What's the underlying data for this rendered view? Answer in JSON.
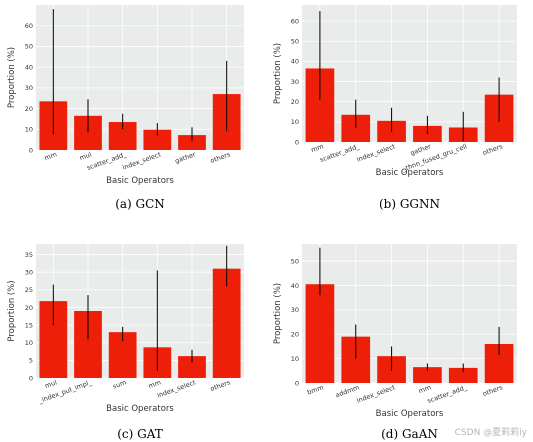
{
  "colors": {
    "bar": "#ee1f08",
    "panel": "#e9ecea",
    "grid": "#ffffff",
    "error": "#000000"
  },
  "watermark": "CSDN @夏莉莉iy",
  "chart_data": [
    {
      "type": "bar",
      "caption": "(a) GCN",
      "xlabel": "Basic Operators",
      "ylabel": "Proportion (%)",
      "categories": [
        "mm",
        "mul",
        "scatter_add_",
        "index_select",
        "gather",
        "others"
      ],
      "values": [
        23.5,
        16.5,
        13.5,
        9.8,
        7.2,
        27
      ],
      "errors": [
        [
          7.5,
          68
        ],
        [
          8.5,
          24.5
        ],
        [
          10,
          17.5
        ],
        [
          7,
          13
        ],
        [
          4.5,
          11
        ],
        [
          9,
          43
        ]
      ],
      "yticks": [
        0,
        10,
        20,
        30,
        40,
        50,
        60
      ],
      "ylim": [
        0,
        70
      ]
    },
    {
      "type": "bar",
      "caption": "(b) GGNN",
      "xlabel": "Basic Operators",
      "ylabel": "Proportion (%)",
      "categories": [
        "mm",
        "scatter_add_",
        "index_select",
        "gather",
        "_thnn_fused_gru_cell",
        "others"
      ],
      "values": [
        36.5,
        13.5,
        10.5,
        8,
        7.2,
        23.5
      ],
      "errors": [
        [
          21,
          65
        ],
        [
          7,
          21
        ],
        [
          5,
          17
        ],
        [
          4,
          13
        ],
        [
          0.5,
          15
        ],
        [
          10,
          32
        ]
      ],
      "yticks": [
        0,
        10,
        20,
        30,
        40,
        50,
        60
      ],
      "ylim": [
        0,
        68
      ]
    },
    {
      "type": "bar",
      "caption": "(c) GAT",
      "xlabel": "Basic Operators",
      "ylabel": "Proportion (%)",
      "categories": [
        "mul",
        "_index_put_impl_",
        "sum",
        "mm",
        "index_select",
        "others"
      ],
      "values": [
        21.8,
        19,
        13,
        8.7,
        6.2,
        31
      ],
      "errors": [
        [
          15,
          26.5
        ],
        [
          11,
          23.5
        ],
        [
          10.5,
          14.5
        ],
        [
          2,
          30.5
        ],
        [
          4.5,
          8
        ],
        [
          26,
          37.5
        ]
      ],
      "yticks": [
        0,
        5,
        10,
        15,
        20,
        25,
        30,
        35
      ],
      "ylim": [
        0,
        38
      ]
    },
    {
      "type": "bar",
      "caption": "(d) GaAN",
      "xlabel": "Basic Operators",
      "ylabel": "Proportion (%)",
      "categories": [
        "bmm",
        "addmm",
        "index_select",
        "mm",
        "scatter_add_",
        "others"
      ],
      "values": [
        40.5,
        19,
        11,
        6.5,
        6.2,
        16
      ],
      "errors": [
        [
          36,
          55.5
        ],
        [
          10,
          24
        ],
        [
          5,
          15
        ],
        [
          5,
          8
        ],
        [
          4.5,
          8
        ],
        [
          11.5,
          23
        ]
      ],
      "yticks": [
        0,
        10,
        20,
        30,
        40,
        50
      ],
      "ylim": [
        0,
        57
      ]
    }
  ]
}
